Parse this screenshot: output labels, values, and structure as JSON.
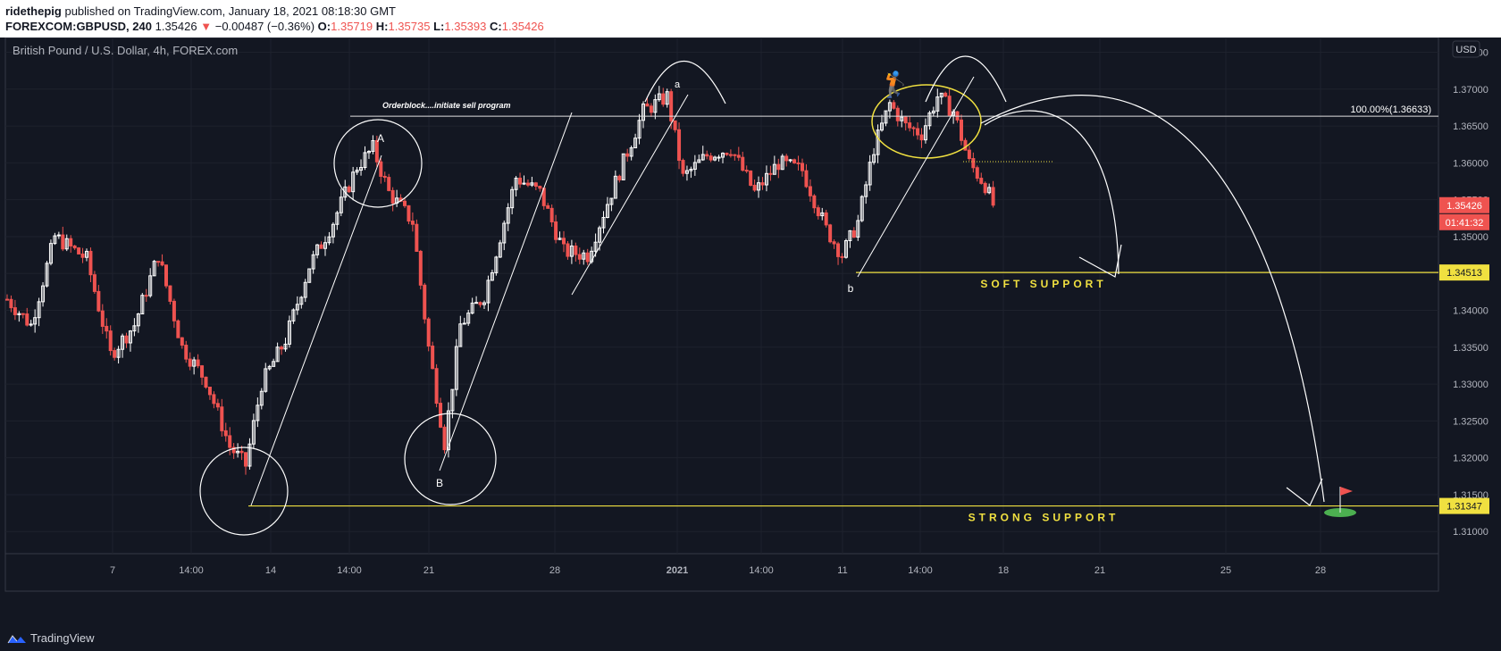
{
  "header": {
    "author": "ridethepig",
    "published": "published on TradingView.com, January 18, 2021 08:18:30 GMT",
    "symbol": "FOREXCOM:GBPUSD, 240",
    "last": "1.35426",
    "change": "−0.00487 (−0.36%)",
    "o_label": "O:",
    "o": "1.35719",
    "h_label": "H:",
    "h": "1.35735",
    "l_label": "L:",
    "l": "1.35393",
    "c_label": "C:",
    "c": "1.35426"
  },
  "chart": {
    "title": "British Pound / U.S. Dollar, 4h, FOREX.com",
    "currency": "USD",
    "price_label": "1.35426",
    "countdown": "01:41:32",
    "support_soft_label": "1.34513",
    "support_strong_label": "1.31347",
    "fib_label": "100.00%(1.36633)"
  },
  "annotations": {
    "orderblock": "Orderblock....initiate sell program",
    "A": "A",
    "B": "B",
    "a": "a",
    "b": "b",
    "soft_support": "SOFT SUPPORT",
    "strong_support": "STRONG SUPPORT"
  },
  "chart_data": {
    "type": "candlestick",
    "title": "British Pound / U.S. Dollar, 4h, FOREX.com",
    "y_ticks": [
      "1.37500",
      "1.37000",
      "1.36500",
      "1.36000",
      "1.35500",
      "1.35000",
      "1.34500",
      "1.34000",
      "1.33500",
      "1.33000",
      "1.32500",
      "1.32000",
      "1.31500",
      "1.31000"
    ],
    "ylim": [
      1.307,
      1.377
    ],
    "x_ticks": [
      "7",
      "14:00",
      "14",
      "14:00",
      "21",
      "28",
      "2021",
      "14:00",
      "11",
      "14:00",
      "18",
      "21",
      "25",
      "28"
    ],
    "levels": {
      "resistance_100pct": 1.36633,
      "soft_support": 1.34513,
      "strong_support": 1.31347,
      "last": 1.35426
    },
    "colors": {
      "up": "#ffffff",
      "down": "#ef5350",
      "support": "#f0e040",
      "background": "#131722"
    },
    "anchors": [
      {
        "i": 0,
        "p": 1.3415
      },
      {
        "i": 6,
        "p": 1.338
      },
      {
        "i": 12,
        "p": 1.35
      },
      {
        "i": 20,
        "p": 1.347
      },
      {
        "i": 26,
        "p": 1.334
      },
      {
        "i": 32,
        "p": 1.338
      },
      {
        "i": 38,
        "p": 1.3475
      },
      {
        "i": 44,
        "p": 1.335
      },
      {
        "i": 50,
        "p": 1.3305
      },
      {
        "i": 56,
        "p": 1.3215
      },
      {
        "i": 60,
        "p": 1.319
      },
      {
        "i": 64,
        "p": 1.33
      },
      {
        "i": 70,
        "p": 1.336
      },
      {
        "i": 76,
        "p": 1.346
      },
      {
        "i": 82,
        "p": 1.352
      },
      {
        "i": 88,
        "p": 1.3595
      },
      {
        "i": 92,
        "p": 1.362
      },
      {
        "i": 96,
        "p": 1.356
      },
      {
        "i": 102,
        "p": 1.352
      },
      {
        "i": 106,
        "p": 1.335
      },
      {
        "i": 110,
        "p": 1.322
      },
      {
        "i": 114,
        "p": 1.338
      },
      {
        "i": 120,
        "p": 1.342
      },
      {
        "i": 128,
        "p": 1.358
      },
      {
        "i": 134,
        "p": 1.356
      },
      {
        "i": 140,
        "p": 1.348
      },
      {
        "i": 146,
        "p": 1.3475
      },
      {
        "i": 152,
        "p": 1.356
      },
      {
        "i": 160,
        "p": 1.367
      },
      {
        "i": 166,
        "p": 1.369
      },
      {
        "i": 170,
        "p": 1.358
      },
      {
        "i": 176,
        "p": 1.361
      },
      {
        "i": 182,
        "p": 1.362
      },
      {
        "i": 188,
        "p": 1.356
      },
      {
        "i": 194,
        "p": 1.36
      },
      {
        "i": 200,
        "p": 1.359
      },
      {
        "i": 206,
        "p": 1.351
      },
      {
        "i": 210,
        "p": 1.3475
      },
      {
        "i": 214,
        "p": 1.352
      },
      {
        "i": 218,
        "p": 1.362
      },
      {
        "i": 222,
        "p": 1.368
      },
      {
        "i": 226,
        "p": 1.365
      },
      {
        "i": 230,
        "p": 1.364
      },
      {
        "i": 234,
        "p": 1.369
      },
      {
        "i": 238,
        "p": 1.367
      },
      {
        "i": 242,
        "p": 1.36
      },
      {
        "i": 246,
        "p": 1.357
      },
      {
        "i": 248,
        "p": 1.3543
      }
    ]
  }
}
